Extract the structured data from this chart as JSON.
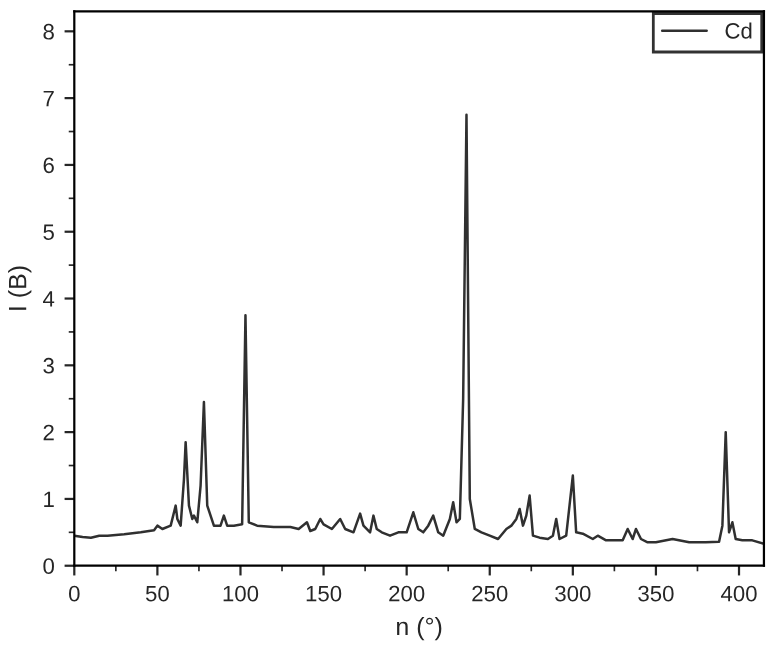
{
  "chart_data": {
    "type": "line",
    "xlabel": "n (°)",
    "ylabel": "I (B)",
    "xlim": [
      0,
      415
    ],
    "ylim": [
      0,
      8.3
    ],
    "xticks": [
      0,
      50,
      100,
      150,
      200,
      250,
      300,
      350,
      400
    ],
    "yticks": [
      0,
      1,
      2,
      3,
      4,
      5,
      6,
      7,
      8
    ],
    "grid": false,
    "legend": "top right",
    "line_style": "solid",
    "marker": "none",
    "series": [
      {
        "name": "Cd",
        "color": "#303030",
        "x": [
          0,
          5,
          10,
          15,
          20,
          30,
          40,
          48,
          50,
          53,
          58,
          61,
          62,
          64,
          66,
          67,
          69,
          71,
          72,
          74,
          76,
          78,
          80,
          84,
          88,
          90,
          92,
          96,
          101,
          103,
          105,
          110,
          120,
          130,
          135,
          140,
          142,
          145,
          148,
          150,
          155,
          160,
          163,
          168,
          172,
          174,
          178,
          180,
          182,
          185,
          190,
          195,
          200,
          204,
          207,
          210,
          213,
          216,
          219,
          222,
          226,
          228,
          230,
          232,
          234,
          236,
          238,
          241,
          245,
          250,
          255,
          260,
          263,
          266,
          268,
          270,
          272,
          274,
          276,
          280,
          285,
          288,
          290,
          292,
          296,
          298,
          300,
          302,
          306,
          312,
          315,
          320,
          330,
          333,
          336,
          338,
          341,
          345,
          350,
          360,
          370,
          380,
          388,
          390,
          392,
          394,
          396,
          398,
          402,
          408,
          415
        ],
        "values": [
          0.45,
          0.43,
          0.42,
          0.45,
          0.45,
          0.47,
          0.5,
          0.53,
          0.6,
          0.55,
          0.6,
          0.9,
          0.7,
          0.6,
          1.3,
          1.85,
          0.9,
          0.7,
          0.75,
          0.65,
          1.2,
          2.45,
          0.9,
          0.6,
          0.6,
          0.75,
          0.6,
          0.6,
          0.62,
          3.75,
          0.65,
          0.6,
          0.58,
          0.58,
          0.55,
          0.65,
          0.52,
          0.55,
          0.7,
          0.62,
          0.55,
          0.7,
          0.55,
          0.5,
          0.78,
          0.6,
          0.5,
          0.75,
          0.55,
          0.5,
          0.45,
          0.5,
          0.5,
          0.8,
          0.55,
          0.5,
          0.6,
          0.75,
          0.5,
          0.45,
          0.7,
          0.95,
          0.65,
          0.7,
          2.5,
          6.75,
          1.0,
          0.55,
          0.5,
          0.45,
          0.4,
          0.55,
          0.6,
          0.7,
          0.85,
          0.6,
          0.75,
          1.05,
          0.45,
          0.42,
          0.4,
          0.45,
          0.7,
          0.4,
          0.45,
          0.9,
          1.35,
          0.5,
          0.48,
          0.4,
          0.45,
          0.38,
          0.38,
          0.55,
          0.4,
          0.55,
          0.4,
          0.35,
          0.35,
          0.4,
          0.35,
          0.35,
          0.36,
          0.6,
          2.0,
          0.5,
          0.65,
          0.4,
          0.38,
          0.38,
          0.33
        ]
      }
    ]
  }
}
